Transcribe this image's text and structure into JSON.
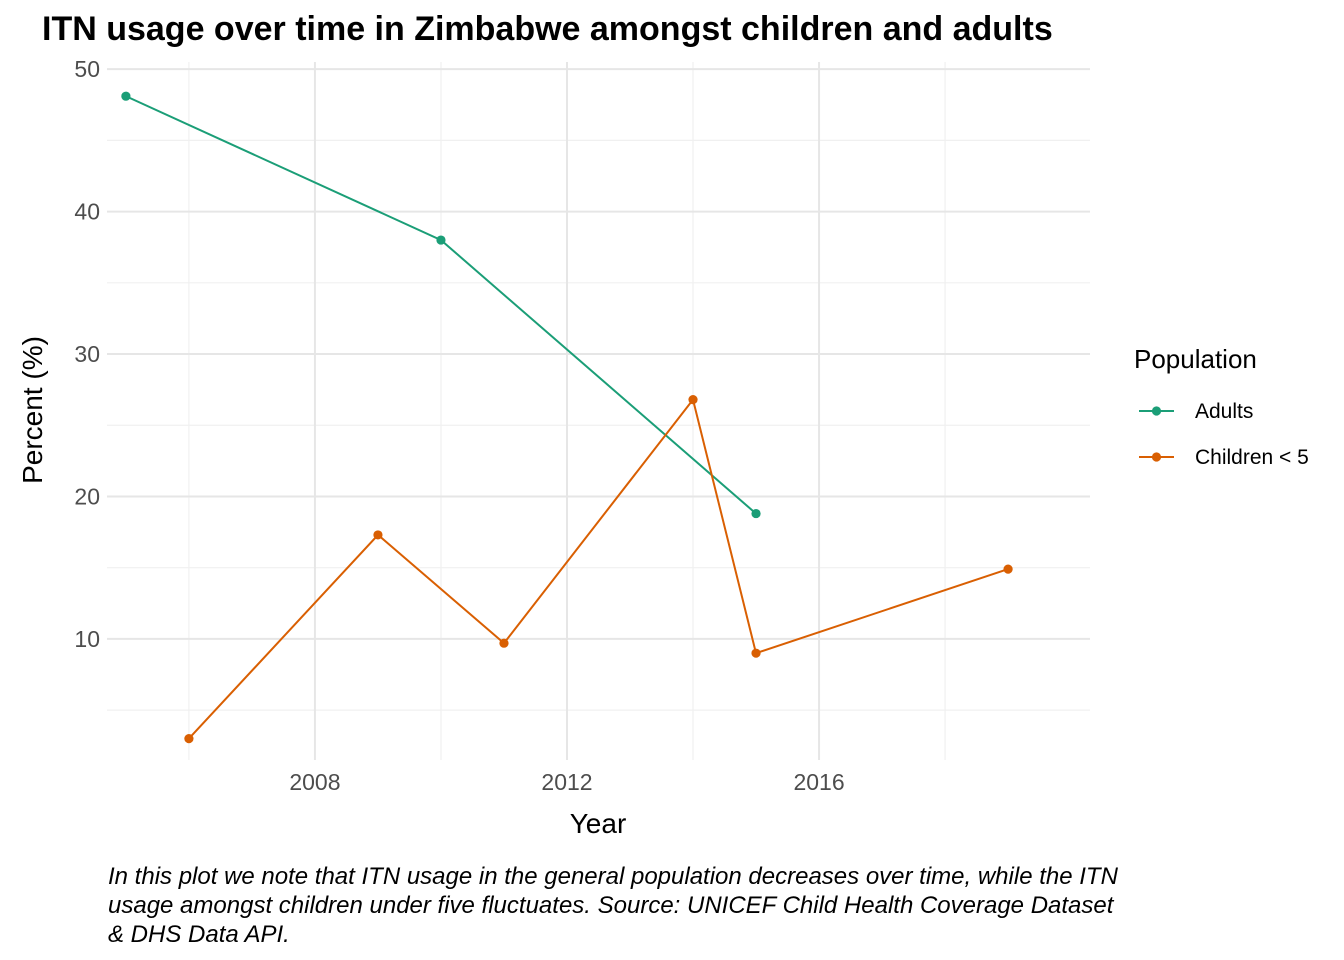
{
  "chart_data": {
    "type": "line",
    "title": "ITN usage over time in Zimbabwe amongst children and adults",
    "xlabel": "Year",
    "ylabel": "Percent (%)",
    "xlim": [
      2004.7,
      2020.3
    ],
    "ylim": [
      1.5,
      50.5
    ],
    "x_ticks": [
      2008,
      2012,
      2016
    ],
    "y_ticks": [
      10,
      20,
      30,
      40,
      50
    ],
    "x_minor_ticks": [
      2006,
      2010,
      2014,
      2018
    ],
    "y_minor_ticks": [
      5,
      15,
      25,
      35,
      45
    ],
    "grid": true,
    "legend": {
      "title": "Population",
      "position": "right"
    },
    "series": [
      {
        "name": "Adults",
        "color": "#1b9e77",
        "x": [
          2005,
          2010,
          2015
        ],
        "y": [
          48.1,
          38.0,
          18.8
        ]
      },
      {
        "name": "Children < 5",
        "color": "#d95f02",
        "x": [
          2006,
          2009,
          2011,
          2014,
          2015,
          2019
        ],
        "y": [
          3.0,
          17.3,
          9.7,
          26.8,
          9.0,
          14.9
        ]
      }
    ],
    "caption": "In this plot we note that ITN usage in the general population decreases over time, while the ITN usage amongst children under five fluctuates. Source: UNICEF Child Health Coverage Dataset & DHS Data API."
  }
}
